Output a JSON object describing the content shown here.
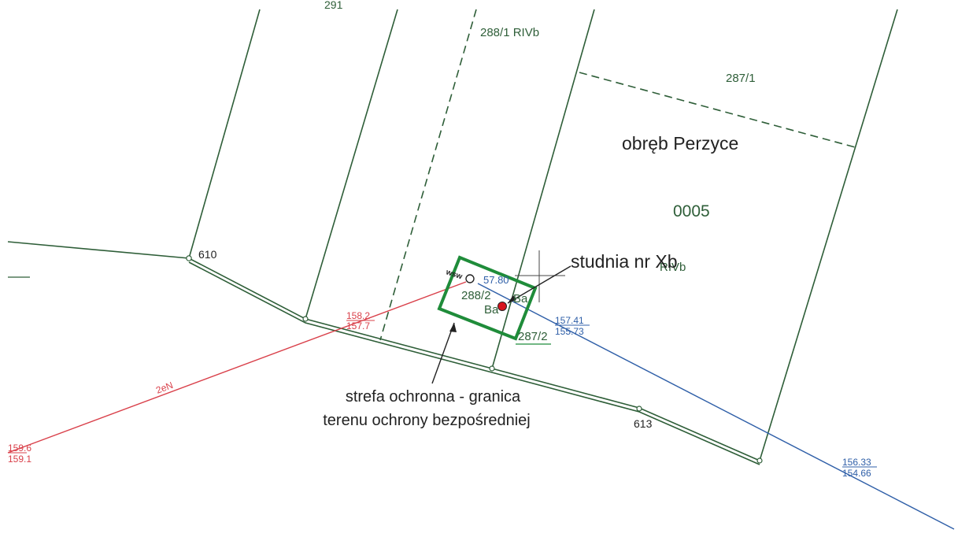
{
  "colors": {
    "parcel": "#2e5e38",
    "parcel_text": "#2e5e38",
    "red_line": "#d9404a",
    "blue_line": "#2f5fa8",
    "zone": "#1f8c3a",
    "well": "#d8141d",
    "annotation": "#222222"
  },
  "labels": {
    "parcel_top_left_partial": "291",
    "parcel_288_1": "288/1 RIVb",
    "parcel_287_1": "287/1",
    "precinct": "obręb Perzyce",
    "precinct_number": "0005",
    "point_610": "610",
    "point_613": "613",
    "well_label": "studnia nr Xb",
    "riv_partial": "RIVb",
    "parcel_288_2": "288/2",
    "parcel_287_2": "287/2",
    "ba_1": "Ba",
    "ba_2": "Ba",
    "wsw": "wsw",
    "blue_elev_near": "57.80",
    "red_elev_top": "158.2",
    "red_elev_bottom": "157.7",
    "red_elev_left_top": "159.6",
    "red_elev_left_bottom": "159.1",
    "red_line_code": "2eN",
    "blue_elev_mid_top": "157.41",
    "blue_elev_mid_bottom": "155.73",
    "blue_elev_right_top": "156.33",
    "blue_elev_right_bottom": "154.66",
    "zone_caption_line1": "strefa ochronna - granica",
    "zone_caption_line2": "terenu ochrony bezpośredniej"
  },
  "icons": {
    "well": "red-dot-well-icon",
    "boundary_point": "small-circle-point-icon"
  }
}
